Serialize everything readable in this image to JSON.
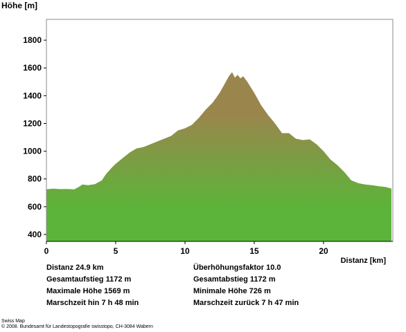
{
  "chart_data": {
    "type": "area",
    "title": "",
    "ylabel": "Höhe [m]",
    "xlabel": "Distanz [km]",
    "ylim": [
      350,
      1950
    ],
    "xlim": [
      0,
      25
    ],
    "y_ticks": [
      400,
      600,
      800,
      1000,
      1200,
      1400,
      1600,
      1800
    ],
    "x_ticks": [
      0,
      5,
      10,
      15,
      20
    ],
    "grid": false,
    "legend": "none",
    "fill_gradient": [
      "#9a864c",
      "#5cb43a"
    ],
    "series": [
      {
        "x": [
          0,
          0.5,
          1,
          1.5,
          2,
          2.3,
          2.6,
          3,
          3.5,
          4,
          4.3,
          4.7,
          5,
          5.5,
          6,
          6.5,
          7,
          7.5,
          8,
          8.5,
          9,
          9.5,
          10,
          10.5,
          11,
          11.5,
          12,
          12.5,
          13,
          13.2,
          13.4,
          13.6,
          13.8,
          14,
          14.2,
          14.5,
          15,
          15.5,
          16,
          16.5,
          17,
          17.5,
          18,
          18.5,
          19,
          19.5,
          20,
          20.5,
          21,
          21.5,
          22,
          22.5,
          23,
          23.5,
          24,
          24.5,
          24.9
        ],
        "y": [
          726,
          730,
          727,
          728,
          725,
          740,
          760,
          755,
          762,
          790,
          835,
          880,
          910,
          950,
          990,
          1020,
          1030,
          1050,
          1070,
          1090,
          1110,
          1150,
          1165,
          1190,
          1240,
          1300,
          1350,
          1420,
          1510,
          1545,
          1569,
          1530,
          1550,
          1525,
          1540,
          1500,
          1420,
          1330,
          1260,
          1200,
          1130,
          1130,
          1090,
          1080,
          1085,
          1050,
          1000,
          940,
          900,
          850,
          790,
          770,
          760,
          755,
          748,
          742,
          730
        ]
      }
    ]
  },
  "stats_left": [
    "Distanz 24.9 km",
    "Gesamtaufstieg  1172 m",
    "Maximale Höhe  1569 m",
    "Marschzeit hin  7 h 48 min"
  ],
  "stats_right": [
    "Überhöhungsfaktor 10.0",
    "Gesamtabstieg  1172 m",
    "Minimale Höhe  726 m",
    "Marschzeit zurück  7 h 47 min"
  ],
  "footer": {
    "line1": "Swiss Map",
    "line2": "© 2008. Bundesamt für Landestopografie swisstopo, CH-3084 Wabern"
  }
}
